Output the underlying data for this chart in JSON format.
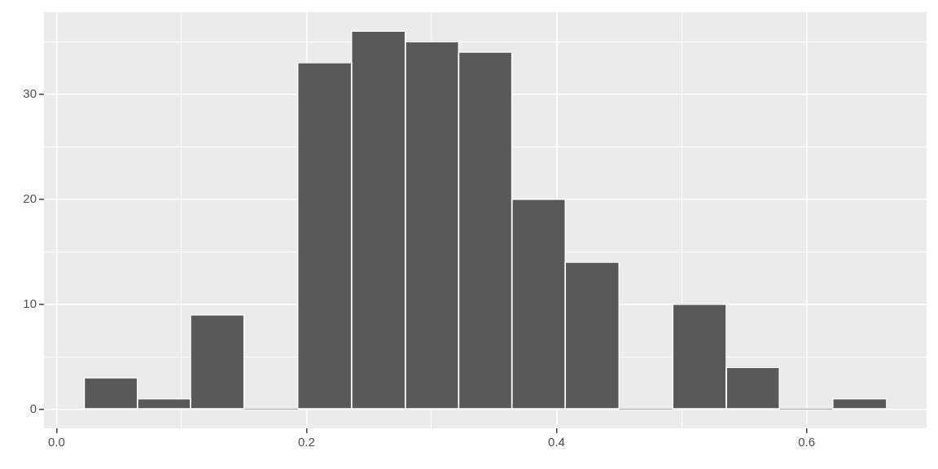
{
  "chart_data": {
    "type": "histogram",
    "bins": [
      0.022,
      0.065,
      0.107,
      0.15,
      0.193,
      0.236,
      0.279,
      0.322,
      0.364,
      0.407,
      0.45,
      0.493,
      0.536,
      0.578,
      0.621,
      0.664
    ],
    "values": [
      3,
      1,
      9,
      0,
      33,
      36,
      35,
      34,
      20,
      14,
      0,
      10,
      4,
      0,
      1
    ],
    "color": "#595959",
    "xlim": [
      -0.01,
      0.696
    ],
    "ylim": [
      -1.8,
      37.8
    ],
    "xticks": [
      {
        "value": 0,
        "label": "0.0"
      },
      {
        "value": 0.1,
        "label": null
      },
      0.2,
      {
        "value": 0.3,
        "label": null
      },
      0.4,
      {
        "value": 0.5,
        "label": null
      },
      0.6
    ],
    "yticks": [
      0,
      {
        "value": 5,
        "label": null
      },
      10,
      {
        "value": 15,
        "label": null
      },
      20,
      {
        "value": 25,
        "label": null
      },
      30,
      {
        "value": 35,
        "label": null
      }
    ],
    "grid": true
  }
}
